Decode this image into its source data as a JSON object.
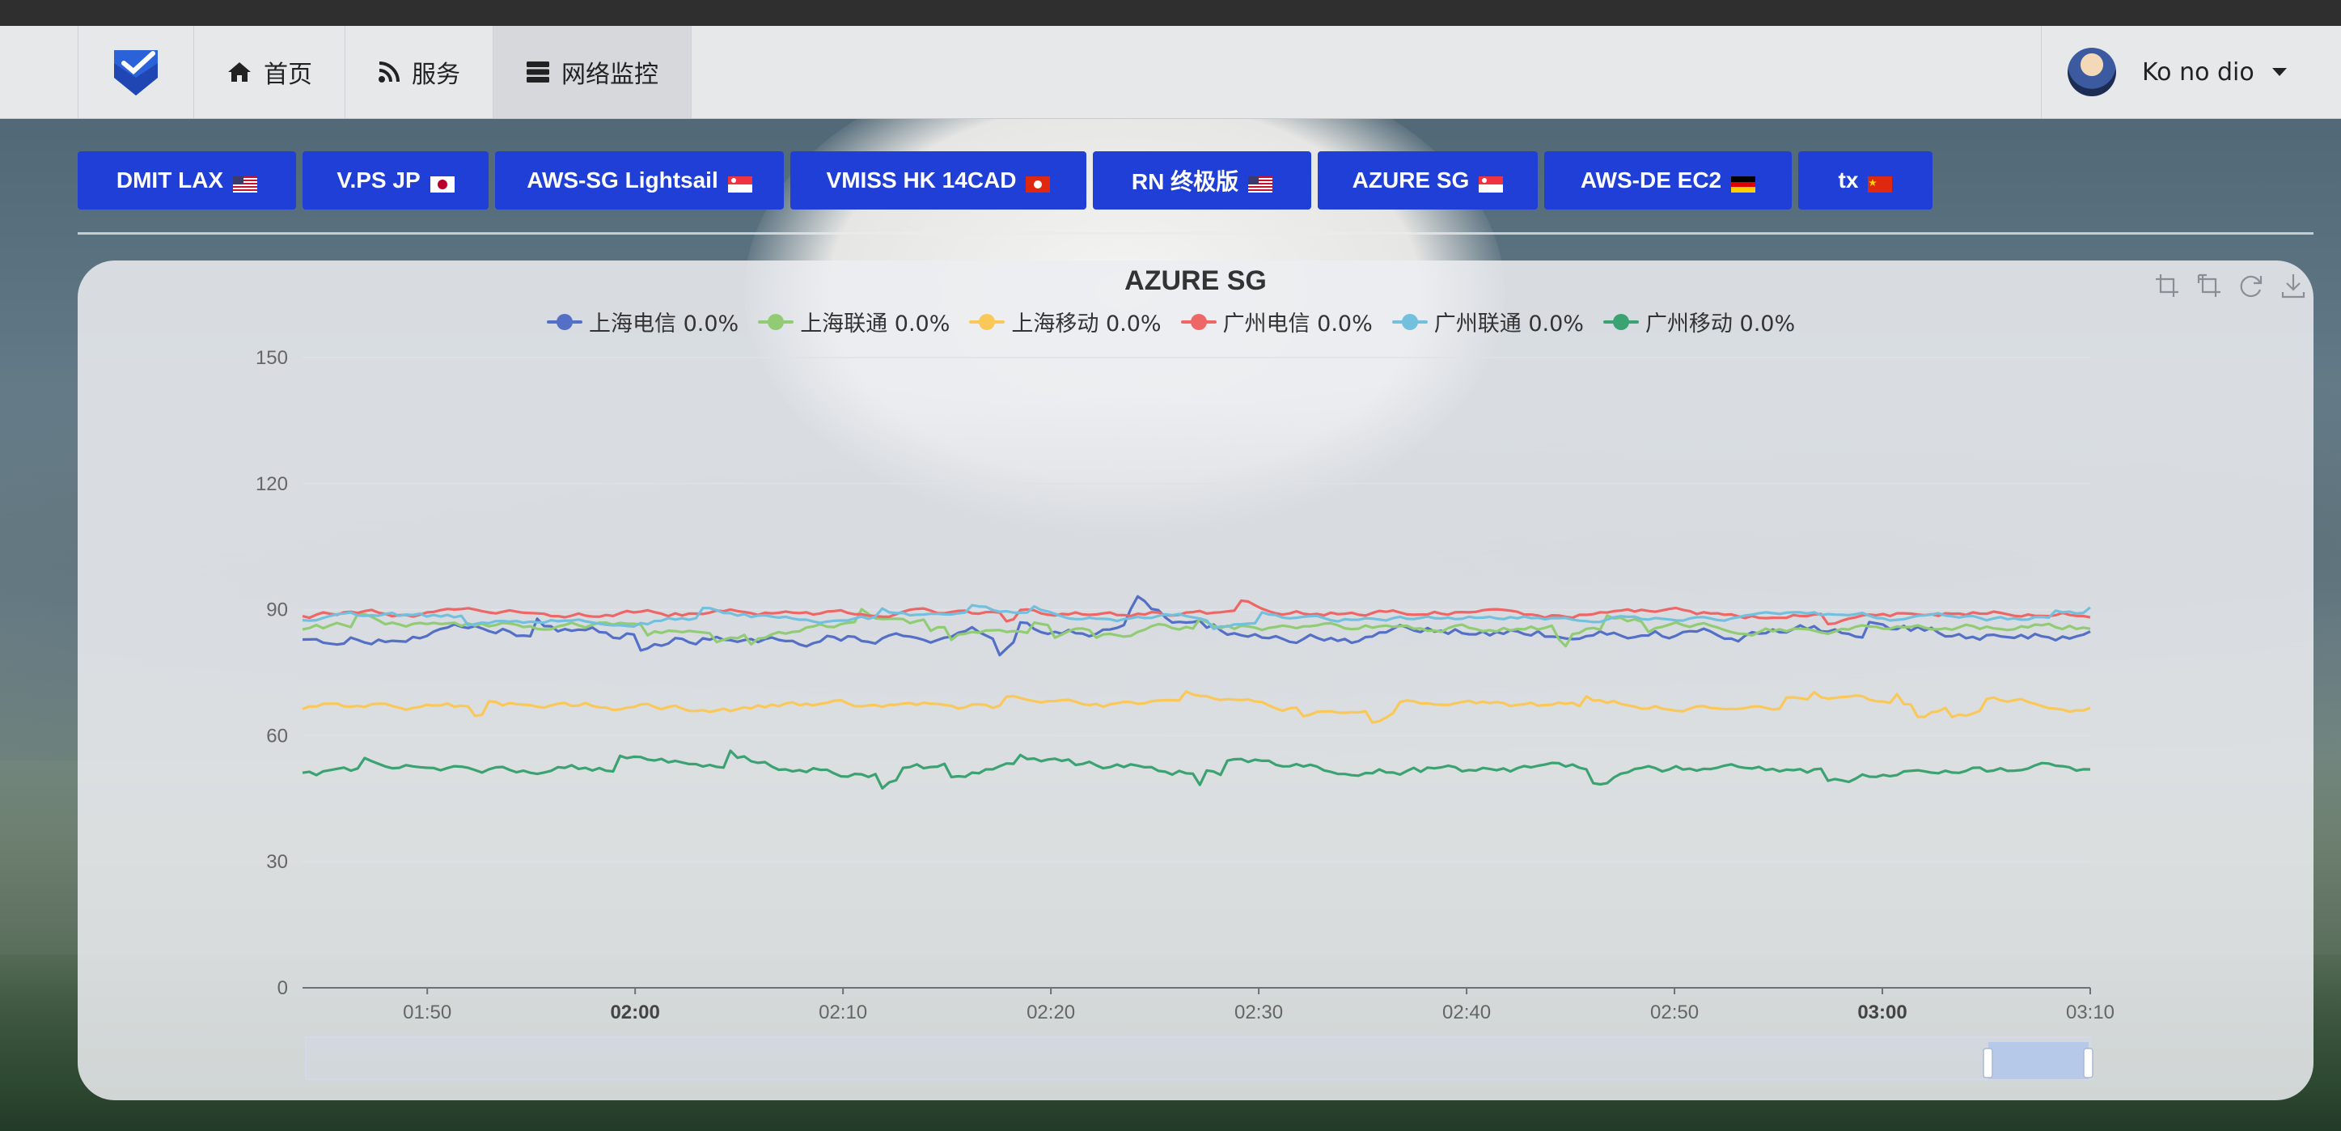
{
  "navbar": {
    "items": [
      {
        "label": "首页",
        "icon": "home-icon"
      },
      {
        "label": "服务",
        "icon": "rss-icon"
      },
      {
        "label": "网络监控",
        "icon": "server-icon"
      }
    ],
    "user": {
      "name": "Ko no dio"
    }
  },
  "tabs": [
    {
      "label": "DMIT LAX",
      "flag": "us"
    },
    {
      "label": "V.PS JP",
      "flag": "jp"
    },
    {
      "label": "AWS-SG Lightsail",
      "flag": "sg"
    },
    {
      "label": "VMISS HK 14CAD",
      "flag": "hk"
    },
    {
      "label": "RN 终极版",
      "flag": "us"
    },
    {
      "label": "AZURE SG",
      "flag": "sg"
    },
    {
      "label": "AWS-DE EC2",
      "flag": "de"
    },
    {
      "label": "tx",
      "flag": "cn"
    }
  ],
  "chart_data": {
    "type": "line",
    "title": "AZURE SG",
    "ylim": [
      0,
      150
    ],
    "y_ticks": [
      "0",
      "30",
      "60",
      "90",
      "120",
      "150"
    ],
    "x_range": [
      "01:44",
      "03:10"
    ],
    "x_ticks": [
      "01:50",
      "02:00",
      "02:10",
      "02:20",
      "02:30",
      "02:40",
      "02:50",
      "03:00",
      "03:10"
    ],
    "x_ticks_bold": [
      "02:00",
      "03:00"
    ],
    "grid": true,
    "legend_position": "top",
    "series": [
      {
        "name": "上海电信",
        "pct": "0.0%",
        "color": "#5470c6",
        "base": 84,
        "amp": 2.5
      },
      {
        "name": "上海联通",
        "pct": "0.0%",
        "color": "#91cc75",
        "base": 86,
        "amp": 1.6
      },
      {
        "name": "上海移动",
        "pct": "0.0%",
        "color": "#fac858",
        "base": 67,
        "amp": 1.5
      },
      {
        "name": "广州电信",
        "pct": "0.0%",
        "color": "#ee6666",
        "base": 89,
        "amp": 1.3
      },
      {
        "name": "广州联通",
        "pct": "0.0%",
        "color": "#73c0de",
        "base": 88,
        "amp": 1.2
      },
      {
        "name": "广州移动",
        "pct": "0.0%",
        "color": "#3ba272",
        "base": 52,
        "amp": 2.0
      }
    ]
  }
}
